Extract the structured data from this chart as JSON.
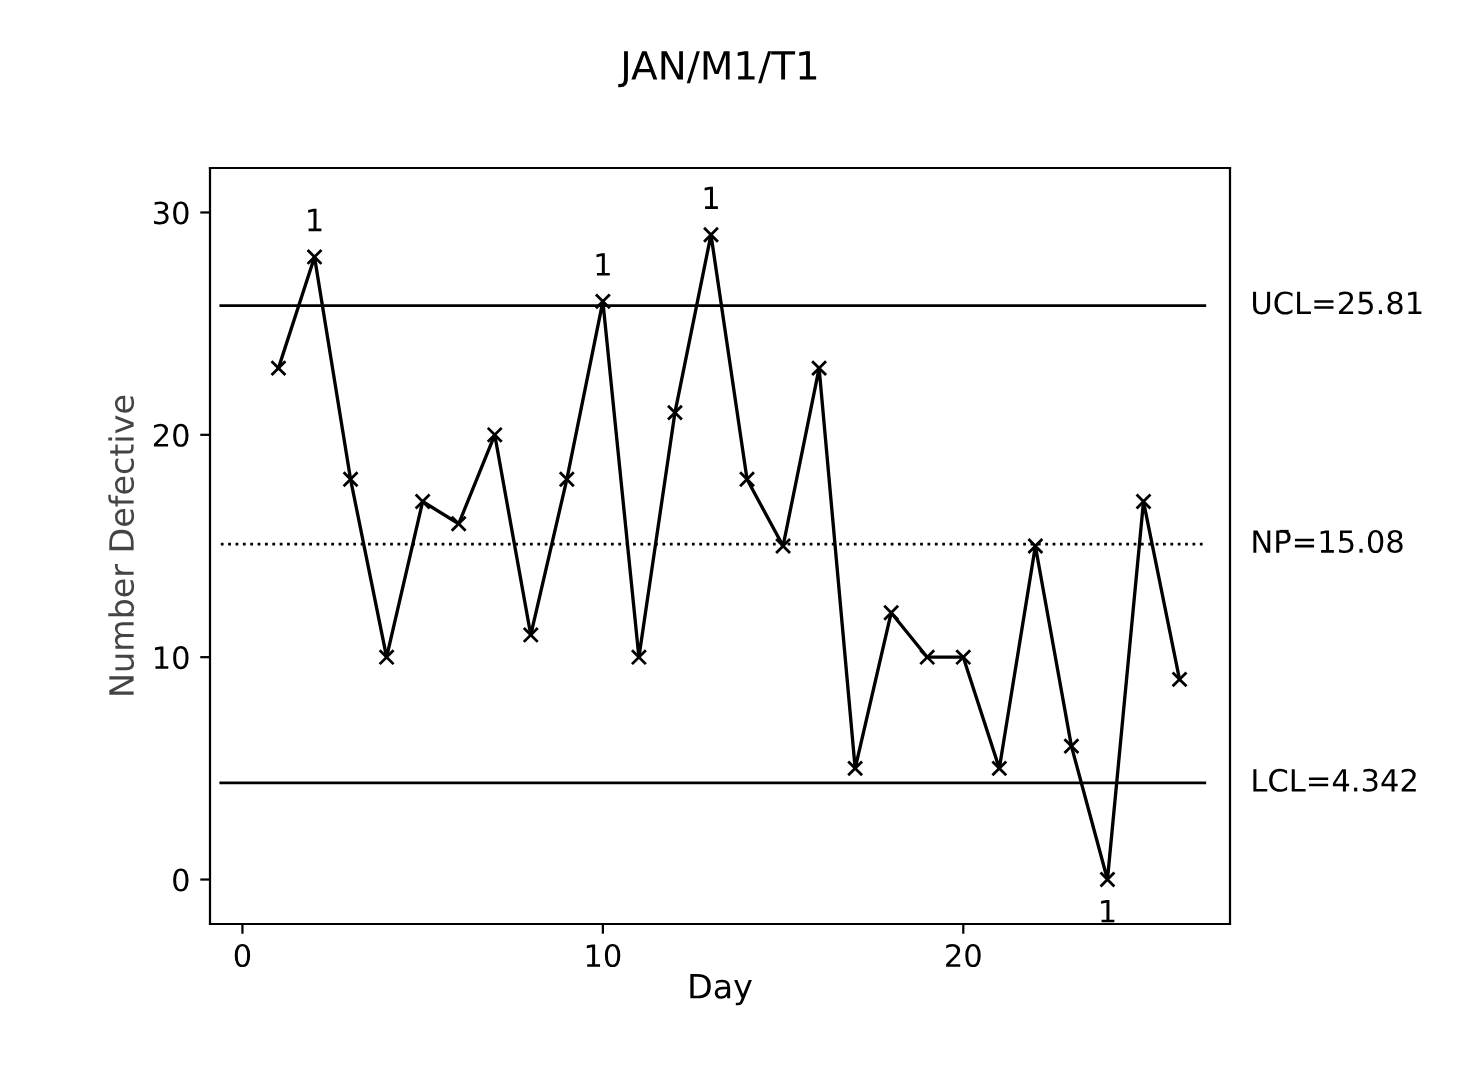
{
  "chart_data": {
    "type": "line",
    "title": "JAN/M1/T1",
    "xlabel": "Day",
    "ylabel": "Number Defective",
    "x": [
      1,
      2,
      3,
      4,
      5,
      6,
      7,
      8,
      9,
      10,
      11,
      12,
      13,
      14,
      15,
      16,
      17,
      18,
      19,
      20,
      21,
      22,
      23,
      24,
      25,
      26
    ],
    "values": [
      23,
      28,
      18,
      10,
      17,
      16,
      20,
      11,
      18,
      26,
      10,
      21,
      29,
      18,
      15,
      23,
      5,
      12,
      10,
      10,
      5,
      15,
      6,
      0,
      17,
      9
    ],
    "color": "#000000",
    "marker": "cross",
    "line_style": "solid",
    "grid": false,
    "legend": false,
    "xlim": [
      -0.9,
      27.4
    ],
    "xticks": [
      0,
      10,
      20
    ],
    "ylim": [
      -2,
      32
    ],
    "yticks": [
      0,
      10,
      20,
      30
    ],
    "ref_lines": [
      {
        "axis": "y",
        "value": 25.81,
        "label": "UCL=25.81",
        "color": "#000000",
        "line_style": "solid"
      },
      {
        "axis": "y",
        "value": 15.08,
        "label": "NP̄=15.08",
        "color": "#000000",
        "line_style": "dotted"
      },
      {
        "axis": "y",
        "value": 4.342,
        "label": "LCL=4.342",
        "color": "#000000",
        "line_style": "solid"
      }
    ],
    "annotations": [
      {
        "text": "1",
        "x": 2,
        "y": 28
      },
      {
        "text": "1",
        "x": 10,
        "y": 26
      },
      {
        "text": "1",
        "x": 13,
        "y": 29
      },
      {
        "text": "1",
        "x": 24,
        "y": 0
      }
    ]
  }
}
